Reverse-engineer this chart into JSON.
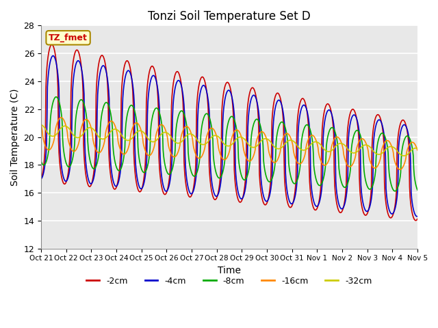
{
  "title": "Tonzi Soil Temperature Set D",
  "xlabel": "Time",
  "ylabel": "Soil Temperature (C)",
  "ylim": [
    12,
    28
  ],
  "xlim": [
    0,
    15
  ],
  "background_color": "#e8e8e8",
  "grid_color": "white",
  "legend_entries": [
    "-2cm",
    "-4cm",
    "-8cm",
    "-16cm",
    "-32cm"
  ],
  "legend_colors": [
    "#cc0000",
    "#0000cc",
    "#00aa00",
    "#ff8800",
    "#cccc00"
  ],
  "xtick_labels": [
    "Oct 21",
    "Oct 22",
    "Oct 23",
    "Oct 24",
    "Oct 25",
    "Oct 26",
    "Oct 27",
    "Oct 28",
    "Oct 29",
    "Oct 30",
    "Oct 31",
    "Nov 1",
    "Nov 2",
    "Nov 3",
    "Nov 4",
    "Nov 5"
  ],
  "annotation_text": "TZ_fmet",
  "annotation_bg": "#ffffcc",
  "annotation_border": "#aa8800",
  "annotation_color": "#cc0000"
}
